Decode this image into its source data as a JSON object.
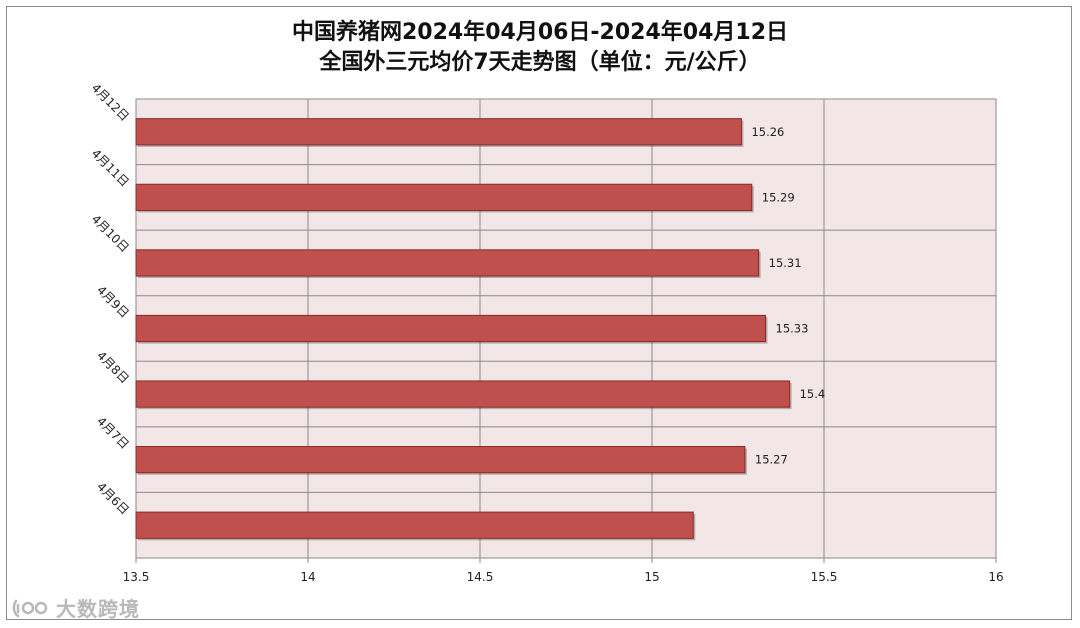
{
  "title_line1": "中国养猪网2024年04月06日-2024年04月12日",
  "title_line2": "全国外三元均价7天走势图（单位：元/公斤）",
  "watermark_text": "大数跨境",
  "colors": {
    "plot_bg": "#f2e6e6",
    "bar_fill": "#c0504d",
    "bar_stroke": "#8b2a27",
    "grid": "#8a8a8a"
  },
  "chart_data": {
    "type": "bar",
    "orientation": "horizontal",
    "categories": [
      "4月12日",
      "4月11日",
      "4月10日",
      "4月9日",
      "4月8日",
      "4月7日",
      "4月6日"
    ],
    "values": [
      15.26,
      15.29,
      15.31,
      15.33,
      15.4,
      15.27,
      15.12
    ],
    "data_labels": [
      "15.26",
      "15.29",
      "15.31",
      "15.33",
      "15.4",
      "15.27",
      ""
    ],
    "xlim": [
      13.5,
      16
    ],
    "x_ticks": [
      "13.5",
      "14",
      "14.5",
      "15",
      "15.5",
      "16"
    ],
    "grid": true,
    "legend": "none"
  }
}
